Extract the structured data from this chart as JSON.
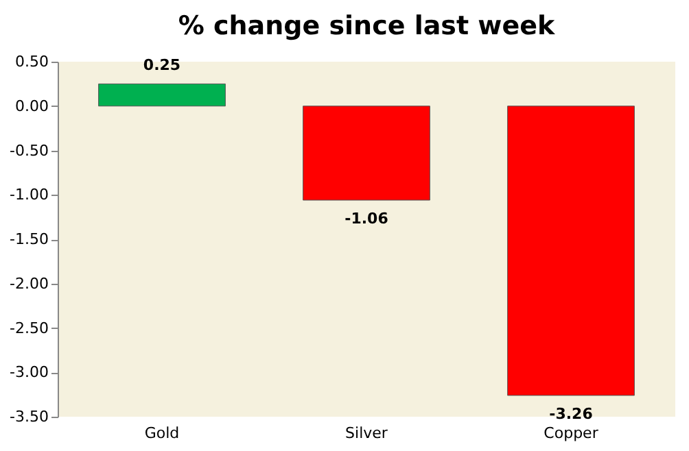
{
  "chart_data": {
    "type": "bar",
    "title": "% change since last week",
    "categories": [
      "Gold",
      "Silver",
      "Copper"
    ],
    "values": [
      0.25,
      -1.06,
      -3.26
    ],
    "colors": [
      "#00b050",
      "#ff0000",
      "#ff0000"
    ],
    "ylim": [
      -3.5,
      0.5
    ],
    "yticks": [
      {
        "value": 0.5,
        "label": "0.50"
      },
      {
        "value": 0,
        "label": "0.00"
      },
      {
        "value": -0.5,
        "label": "-0.50"
      },
      {
        "value": -1,
        "label": "-1.00"
      },
      {
        "value": -1.5,
        "label": "-1.50"
      },
      {
        "value": -2,
        "label": "-2.00"
      },
      {
        "value": -2.5,
        "label": "-2.50"
      },
      {
        "value": -3,
        "label": "-3.00"
      },
      {
        "value": -3.5,
        "label": "-3.50"
      }
    ],
    "data_labels": true,
    "grid": false
  }
}
